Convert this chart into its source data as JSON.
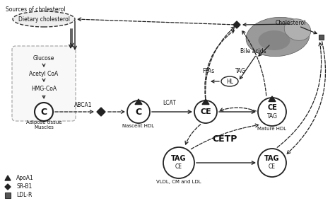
{
  "bg_color": "#ffffff",
  "sources_label": "Sources of cholesterol",
  "dietary_label": "Dietary cholesterol",
  "abca1_label": "ABCA1",
  "nascent_sub": "Nascent HDL",
  "lcat_label": "LCAT",
  "cetp_label": "CETP",
  "mature_sub": "Mature HDL",
  "vldl_sub": "VLDL, CM and LDL",
  "hl_label": "HL",
  "ffas_label": "FFAs",
  "tag_hl_label": "TAG",
  "cholesterol_label": "Cholesterol",
  "bile_label": "Bile acids",
  "legend": [
    "ApoA1",
    "SR-B1",
    "LDL-R"
  ]
}
